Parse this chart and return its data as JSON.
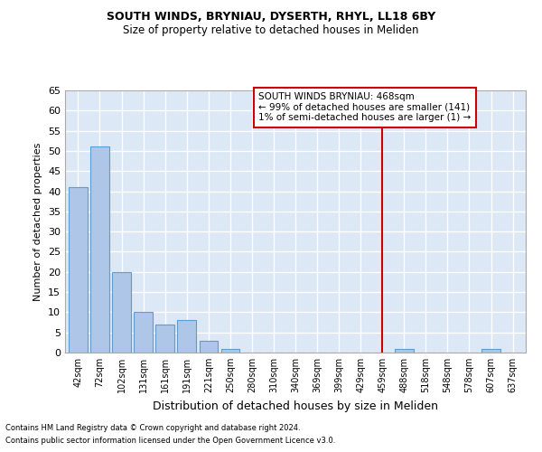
{
  "title": "SOUTH WINDS, BRYNIAU, DYSERTH, RHYL, LL18 6BY",
  "subtitle": "Size of property relative to detached houses in Meliden",
  "xlabel": "Distribution of detached houses by size in Meliden",
  "ylabel": "Number of detached properties",
  "footer_line1": "Contains HM Land Registry data © Crown copyright and database right 2024.",
  "footer_line2": "Contains public sector information licensed under the Open Government Licence v3.0.",
  "categories": [
    "42sqm",
    "72sqm",
    "102sqm",
    "131sqm",
    "161sqm",
    "191sqm",
    "221sqm",
    "250sqm",
    "280sqm",
    "310sqm",
    "340sqm",
    "369sqm",
    "399sqm",
    "429sqm",
    "459sqm",
    "488sqm",
    "518sqm",
    "548sqm",
    "578sqm",
    "607sqm",
    "637sqm"
  ],
  "values": [
    41,
    51,
    20,
    10,
    7,
    8,
    3,
    1,
    0,
    0,
    0,
    0,
    0,
    0,
    0,
    1,
    0,
    0,
    0,
    1,
    0
  ],
  "bar_color": "#aec6e8",
  "bar_edge_color": "#5a9fd4",
  "background_color": "#dce8f5",
  "grid_color": "#ffffff",
  "annotation_label": "SOUTH WINDS BRYNIAU: 468sqm",
  "annotation_line1": "← 99% of detached houses are smaller (141)",
  "annotation_line2": "1% of semi-detached houses are larger (1) →",
  "vline_category_index": 14,
  "vline_color": "#cc0000",
  "annotation_box_edge_color": "#cc0000",
  "ylim": [
    0,
    65
  ],
  "yticks": [
    0,
    5,
    10,
    15,
    20,
    25,
    30,
    35,
    40,
    45,
    50,
    55,
    60,
    65
  ]
}
